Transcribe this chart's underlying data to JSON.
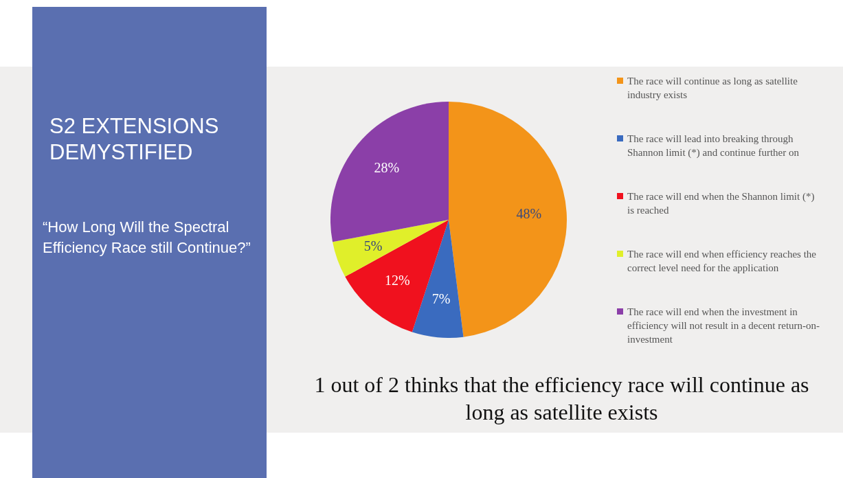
{
  "chart_data": {
    "type": "pie",
    "title": "S2 EXTENSIONS DEMYSTIFIED",
    "subtitle": "“How Long Will the Spectral Efficiency Race still Continue?”",
    "categories": [
      "The race will continue as long as satellite industry exists",
      "The race will lead into breaking through Shannon limit (*) and continue further on",
      "The race will end when the Shannon limit (*) is reached",
      "The race will end when efficiency reaches the correct level need for the application",
      "The race will end when the investment in efficiency will not result in a decent return-on-investment"
    ],
    "values": [
      48,
      7,
      12,
      5,
      28
    ],
    "colors": [
      "#f39419",
      "#3a6bbf",
      "#f0111e",
      "#e0ef2a",
      "#8b3fa8"
    ],
    "value_labels": [
      "48%",
      "7%",
      "12%",
      "5%",
      "28%"
    ],
    "legend": "right",
    "annotations": [
      "1 out of 2 thinks that the efficiency race will continue as long as satellite exists"
    ]
  }
}
